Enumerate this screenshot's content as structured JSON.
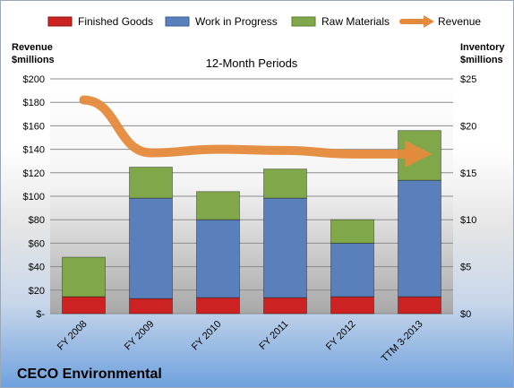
{
  "chart_data": {
    "type": "bar",
    "stacked": true,
    "subtitle": "12-Month Periods",
    "company": "CECO Environmental",
    "left_axis": {
      "title_line1": "Revenue",
      "title_line2": "$millions",
      "range": [
        0,
        200
      ],
      "ticks": [
        "$-",
        "$20",
        "$40",
        "$60",
        "$80",
        "$100",
        "$120",
        "$140",
        "$160",
        "$180",
        "$200"
      ]
    },
    "right_axis": {
      "title_line1": "Inventory",
      "title_line2": "$millions",
      "range": [
        0,
        25
      ],
      "ticks": [
        "$0",
        "$5",
        "$10",
        "$15",
        "$20",
        "$25"
      ]
    },
    "categories": [
      "FY 2008",
      "FY 2009",
      "FY 2010",
      "FY 2011",
      "FY 2012",
      "TTM 3-2013"
    ],
    "series": [
      {
        "name": "Finished Goods",
        "axis": "right",
        "color": "#cc2222",
        "values": [
          1.8,
          1.6,
          1.7,
          1.7,
          1.8,
          1.8
        ]
      },
      {
        "name": "Work in Progress",
        "axis": "right",
        "color": "#5a80bb",
        "values": [
          0.0,
          10.7,
          8.3,
          10.6,
          5.7,
          12.4
        ]
      },
      {
        "name": "Raw Materials",
        "axis": "right",
        "color": "#80a84a",
        "values": [
          4.2,
          3.3,
          3.0,
          3.1,
          2.5,
          5.3
        ]
      }
    ],
    "line": {
      "name": "Revenue",
      "axis": "left",
      "color": "#e58a3c",
      "values": [
        182,
        137,
        140,
        139,
        136,
        136
      ]
    },
    "grid": true,
    "legend_position": "top"
  }
}
